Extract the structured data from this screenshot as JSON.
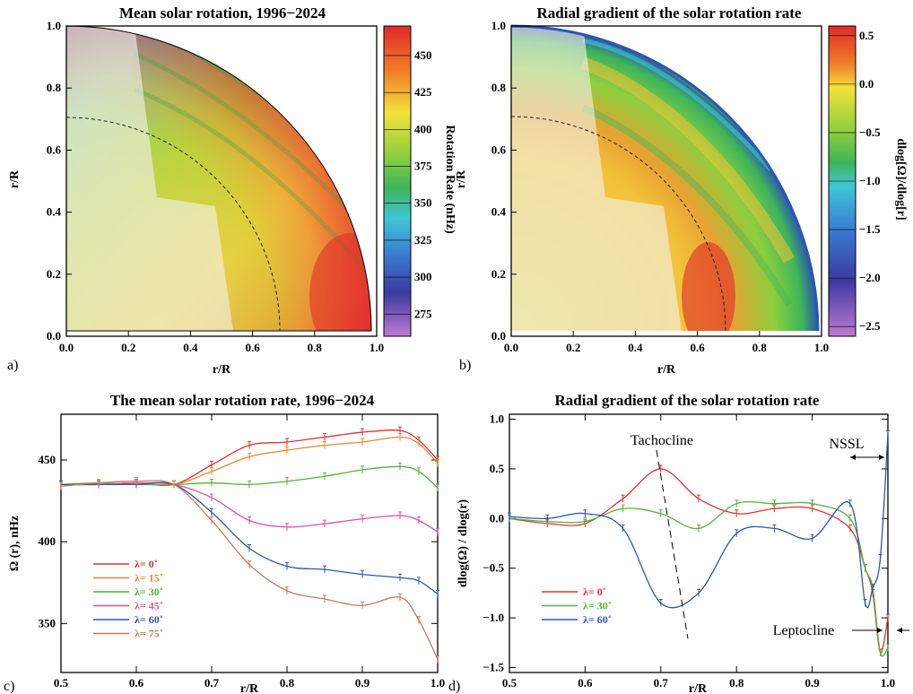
{
  "panels": {
    "a": {
      "letter": "a)",
      "title": "Mean solar rotation, 1996−2024",
      "xlabel": "r/R",
      "ylabel": "r/R",
      "xticks": [
        "0.0",
        "0.2",
        "0.4",
        "0.6",
        "0.8",
        "1.0"
      ],
      "yticks": [
        "0.0",
        "0.2",
        "0.4",
        "0.6",
        "0.8",
        "1.0"
      ],
      "colorbar": {
        "label": "Rotation Rate (nHz)",
        "ticks": [
          "450",
          "425",
          "400",
          "375",
          "350",
          "325",
          "300",
          "275"
        ]
      }
    },
    "b": {
      "letter": "b)",
      "title": "Radial gradient of the solar rotation rate",
      "xlabel": "r/R",
      "ylabel": "r/R",
      "xticks": [
        "0.0",
        "0.2",
        "0.4",
        "0.6",
        "0.8",
        "1.0"
      ],
      "yticks": [
        "0.0",
        "0.2",
        "0.4",
        "0.6",
        "0.8",
        "1.0"
      ],
      "colorbar": {
        "label": "dlog[Ω]/dlog[r]",
        "ticks": [
          "0.5",
          "0.0",
          "−0.5",
          "−1.0",
          "−1.5",
          "−2.0",
          "−2.5"
        ]
      }
    },
    "c": {
      "letter": "c)",
      "title": "The mean solar rotation rate, 1996−2024",
      "xlabel": "r/R",
      "ylabel": "Ω (r), nHz",
      "xticks": [
        "0.5",
        "0.6",
        "0.7",
        "0.8",
        "0.9",
        "1.0"
      ],
      "yticks": [
        "350",
        "400",
        "450"
      ]
    },
    "d": {
      "letter": "d)",
      "title": "Radial gradient of the solar rotation rate",
      "xlabel": "r/R",
      "ylabel": "dlog(Ω) / dlog(r)",
      "xticks": [
        "0.5",
        "0.6",
        "0.7",
        "0.8",
        "0.9",
        "1.0"
      ],
      "yticks": [
        "1.0",
        "0.5",
        "0.0",
        "−0.5",
        "−1.0",
        "−1.5"
      ],
      "annotations": {
        "tachocline": "Tachocline",
        "nssl": "NSSL",
        "leptocline": "Leptocline"
      }
    }
  },
  "colors": {
    "lat0": "#e03030",
    "lat15": "#e8862a",
    "lat30": "#4fb33a",
    "lat45": "#e0509a",
    "lat60": "#2c56b0",
    "lat75": "#c47a5a"
  },
  "chart_data": [
    {
      "type": "heatmap",
      "title": "Mean solar rotation, 1996−2024",
      "xlabel": "r/R",
      "ylabel": "r/R",
      "xlim": [
        0,
        1
      ],
      "ylim": [
        0,
        1
      ],
      "colorbar_label": "Rotation Rate (nHz)",
      "colorbar_range": [
        260,
        470
      ],
      "tachocline_radius": 0.7
    },
    {
      "type": "heatmap",
      "title": "Radial gradient of the solar rotation rate",
      "xlabel": "r/R",
      "ylabel": "r/R",
      "xlim": [
        0,
        1
      ],
      "ylim": [
        0,
        1
      ],
      "colorbar_label": "dlog[Ω]/dlog[r]",
      "colorbar_range": [
        -2.6,
        0.6
      ],
      "tachocline_radius": 0.7
    },
    {
      "type": "line",
      "title": "The mean solar rotation rate, 1996−2024",
      "xlabel": "r/R",
      "ylabel": "Ω (r), nHz",
      "xlim": [
        0.5,
        1.0
      ],
      "ylim": [
        320,
        478
      ],
      "legend": "bottom-left",
      "x": [
        0.5,
        0.55,
        0.6,
        0.65,
        0.7,
        0.75,
        0.8,
        0.85,
        0.9,
        0.95,
        0.975,
        1.0
      ],
      "series": [
        {
          "name": "λ= 0˚",
          "color": "#e03030",
          "values": [
            435,
            435,
            436,
            435,
            447,
            459,
            461,
            464,
            467,
            468,
            462,
            450
          ]
        },
        {
          "name": "λ= 15˚",
          "color": "#e8862a",
          "values": [
            435,
            435,
            436,
            435,
            443,
            452,
            456,
            459,
            461,
            464,
            460,
            448
          ]
        },
        {
          "name": "λ= 30˚",
          "color": "#4fb33a",
          "values": [
            435,
            436,
            435,
            435,
            436,
            435,
            437,
            440,
            444,
            446,
            443,
            433
          ]
        },
        {
          "name": "λ= 45˚",
          "color": "#e0509a",
          "values": [
            435,
            435,
            436,
            435,
            427,
            413,
            409,
            411,
            414,
            416,
            413,
            406
          ]
        },
        {
          "name": "λ= 60˚",
          "color": "#2c56b0",
          "values": [
            435,
            435,
            435,
            435,
            418,
            396,
            385,
            383,
            380,
            378,
            376,
            368
          ]
        },
        {
          "name": "λ= 75˚",
          "color": "#c47a5a",
          "values": [
            434,
            436,
            437,
            435,
            413,
            386,
            370,
            365,
            361,
            366,
            352,
            328
          ]
        }
      ]
    },
    {
      "type": "line",
      "title": "Radial gradient of the solar rotation rate",
      "xlabel": "r/R",
      "ylabel": "dlog(Ω) / dlog(r)",
      "xlim": [
        0.5,
        1.0
      ],
      "ylim": [
        -1.55,
        1.05
      ],
      "legend": "bottom-left",
      "x": [
        0.5,
        0.55,
        0.6,
        0.65,
        0.7,
        0.75,
        0.8,
        0.85,
        0.9,
        0.95,
        0.97,
        0.98,
        0.99,
        1.0
      ],
      "series": [
        {
          "name": "λ= 0˚",
          "color": "#e03030",
          "values": [
            0.0,
            -0.05,
            -0.05,
            0.2,
            0.5,
            0.2,
            0.05,
            0.1,
            0.1,
            -0.1,
            -0.5,
            -0.75,
            -1.35,
            -1.0
          ]
        },
        {
          "name": "λ= 30˚",
          "color": "#4fb33a",
          "values": [
            0.0,
            -0.03,
            -0.03,
            0.1,
            0.05,
            -0.1,
            0.15,
            0.15,
            0.15,
            0.0,
            -0.5,
            -0.7,
            -1.35,
            -1.3
          ]
        },
        {
          "name": "λ= 60˚",
          "color": "#2c56b0",
          "values": [
            0.02,
            0.0,
            0.05,
            -0.1,
            -0.85,
            -0.75,
            -0.15,
            -0.1,
            -0.2,
            0.15,
            -0.85,
            -0.7,
            -0.4,
            0.85
          ]
        }
      ]
    }
  ]
}
